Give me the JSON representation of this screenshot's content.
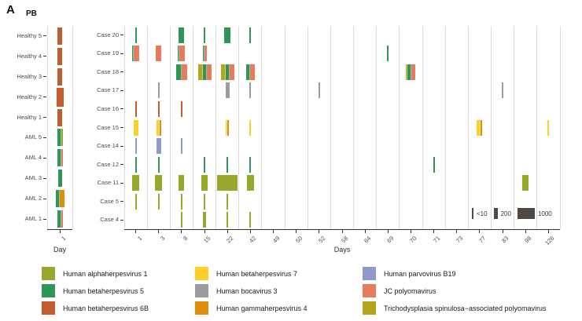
{
  "figure": {
    "panel_label": "A"
  },
  "chart_data": {
    "type": "scatter",
    "description": "Virus detection over time; each mark is a virus detected in a sample, mark width encodes viral load",
    "colors": {
      "alpha1": "#98a82c",
      "beta5": "#2e9659",
      "beta6b": "#c25e2d",
      "beta7": "#fccf2b",
      "boca3": "#9c9c9c",
      "gamma4": "#df8d0d",
      "b19": "#8f9aca",
      "jc": "#e87a5e",
      "tspyv": "#b5a51d"
    },
    "virus_labels": {
      "alpha1": "Human alphaherpesvirus 1",
      "beta5": "Human betaherpesvirus 5",
      "beta6b": "Human betaherpesvirus 6B",
      "beta7": "Human betaherpesvirus 7",
      "boca3": "Human bocavirus 3",
      "gamma4": "Human gammaherpesvirus 4",
      "b19": "Human parvovirus B19",
      "jc": "JC polyomavirus",
      "tspyv": "Trichodysplasia spinulosa−associated polyomavirus"
    },
    "legend_columns": [
      [
        "alpha1",
        "beta5",
        "beta6b"
      ],
      [
        "beta7",
        "boca3",
        "gamma4"
      ],
      [
        "b19",
        "jc",
        "tspyv"
      ]
    ],
    "size_legend": [
      {
        "label": "<10",
        "w": 2
      },
      {
        "label": "200",
        "w": 5
      },
      {
        "label": "1000",
        "w": 22
      }
    ],
    "panels": [
      {
        "id": "pb",
        "title": "PB",
        "xlabel": "Day",
        "x_categories": [
          "1"
        ],
        "rows": [
          {
            "label": "Healthy 5",
            "entries": [
              {
                "day": "1",
                "stack": [
                  [
                    "beta6b",
                    6
                  ]
                ]
              }
            ]
          },
          {
            "label": "Healthy 4",
            "entries": [
              {
                "day": "1",
                "stack": [
                  [
                    "beta6b",
                    6
                  ]
                ]
              }
            ]
          },
          {
            "label": "Healthy 3",
            "entries": [
              {
                "day": "1",
                "stack": [
                  [
                    "beta6b",
                    6
                  ]
                ]
              }
            ]
          },
          {
            "label": "Healthy 2",
            "entries": [
              {
                "day": "1",
                "stack": [
                  [
                    "beta6b",
                    9
                  ]
                ],
                "h": 24
              }
            ]
          },
          {
            "label": "Healthy 1",
            "entries": [
              {
                "day": "1",
                "stack": [
                  [
                    "beta6b",
                    6
                  ]
                ]
              }
            ]
          },
          {
            "label": "AML 5",
            "entries": [
              {
                "day": "1",
                "stack": [
                  [
                    "beta5",
                    5
                  ],
                  [
                    "alpha1",
                    2
                  ]
                ]
              }
            ]
          },
          {
            "label": "AML 4",
            "entries": [
              {
                "day": "1",
                "stack": [
                  [
                    "beta5",
                    5
                  ],
                  [
                    "jc",
                    2
                  ]
                ]
              }
            ]
          },
          {
            "label": "AML 3",
            "entries": [
              {
                "day": "1",
                "stack": [
                  [
                    "beta5",
                    5
                  ]
                ]
              }
            ]
          },
          {
            "label": "AML 2",
            "entries": [
              {
                "day": "1",
                "stack": [
                  [
                    "beta5",
                    5
                  ],
                  [
                    "gamma4",
                    6
                  ]
                ]
              }
            ]
          },
          {
            "label": "AML 1",
            "entries": [
              {
                "day": "1",
                "stack": [
                  [
                    "beta5",
                    5
                  ],
                  [
                    "jc",
                    2
                  ]
                ]
              }
            ]
          }
        ]
      },
      {
        "id": "cases",
        "title": "",
        "xlabel": "Days",
        "x_categories": [
          "1",
          "3",
          "8",
          "15",
          "22",
          "42",
          "49",
          "50",
          "52",
          "58",
          "64",
          "69",
          "70",
          "71",
          "73",
          "77",
          "83",
          "98",
          "126"
        ],
        "rows": [
          {
            "label": "Case 20",
            "entries": [
              {
                "day": "1",
                "stack": [
                  [
                    "beta5",
                    2
                  ]
                ]
              },
              {
                "day": "8",
                "stack": [
                  [
                    "beta5",
                    7
                  ]
                ]
              },
              {
                "day": "15",
                "stack": [
                  [
                    "beta5",
                    2
                  ]
                ]
              },
              {
                "day": "22",
                "stack": [
                  [
                    "beta5",
                    8
                  ]
                ]
              },
              {
                "day": "42",
                "stack": [
                  [
                    "beta5",
                    2
                  ]
                ]
              }
            ]
          },
          {
            "label": "Case 19",
            "entries": [
              {
                "day": "1",
                "stack": [
                  [
                    "beta5",
                    2
                  ],
                  [
                    "jc",
                    7
                  ]
                ]
              },
              {
                "day": "3",
                "stack": [
                  [
                    "jc",
                    7
                  ]
                ]
              },
              {
                "day": "8",
                "stack": [
                  [
                    "beta5",
                    2
                  ],
                  [
                    "jc",
                    7
                  ]
                ]
              },
              {
                "day": "15",
                "stack": [
                  [
                    "beta5",
                    2
                  ],
                  [
                    "jc",
                    3
                  ]
                ]
              },
              {
                "day": "69",
                "stack": [
                  [
                    "beta5",
                    2
                  ]
                ]
              }
            ]
          },
          {
            "label": "Case 18",
            "entries": [
              {
                "day": "8",
                "stack": [
                  [
                    "beta5",
                    7
                  ],
                  [
                    "jc",
                    7
                  ]
                ]
              },
              {
                "day": "15",
                "stack": [
                  [
                    "tspyv",
                    6
                  ],
                  [
                    "beta5",
                    5
                  ],
                  [
                    "jc",
                    6
                  ]
                ]
              },
              {
                "day": "22",
                "stack": [
                  [
                    "tspyv",
                    6
                  ],
                  [
                    "beta5",
                    5
                  ],
                  [
                    "jc",
                    6
                  ]
                ]
              },
              {
                "day": "42",
                "stack": [
                  [
                    "beta5",
                    5
                  ],
                  [
                    "jc",
                    6
                  ]
                ]
              },
              {
                "day": "70",
                "stack": [
                  [
                    "tspyv",
                    2
                  ],
                  [
                    "beta5",
                    5
                  ],
                  [
                    "jc",
                    5
                  ]
                ]
              }
            ]
          },
          {
            "label": "Case 17",
            "entries": [
              {
                "day": "3",
                "stack": [
                  [
                    "boca3",
                    2
                  ]
                ]
              },
              {
                "day": "22",
                "stack": [
                  [
                    "boca3",
                    5
                  ]
                ]
              },
              {
                "day": "42",
                "stack": [
                  [
                    "boca3",
                    2
                  ]
                ]
              },
              {
                "day": "52",
                "stack": [
                  [
                    "boca3",
                    2
                  ]
                ]
              },
              {
                "day": "83",
                "stack": [
                  [
                    "boca3",
                    2
                  ]
                ]
              }
            ]
          },
          {
            "label": "Case 16",
            "entries": [
              {
                "day": "1",
                "stack": [
                  [
                    "beta6b",
                    2
                  ]
                ]
              },
              {
                "day": "3",
                "stack": [
                  [
                    "beta6b",
                    2
                  ]
                ]
              },
              {
                "day": "8",
                "stack": [
                  [
                    "beta6b",
                    2
                  ]
                ]
              }
            ]
          },
          {
            "label": "Case 15",
            "entries": [
              {
                "day": "1",
                "stack": [
                  [
                    "beta7",
                    6
                  ]
                ]
              },
              {
                "day": "3",
                "stack": [
                  [
                    "beta7",
                    4
                  ],
                  [
                    "gamma4",
                    2
                  ]
                ]
              },
              {
                "day": "22",
                "stack": [
                  [
                    "beta7",
                    2
                  ],
                  [
                    "gamma4",
                    2
                  ]
                ]
              },
              {
                "day": "42",
                "stack": [
                  [
                    "beta7",
                    2
                  ]
                ]
              },
              {
                "day": "77",
                "stack": [
                  [
                    "beta7",
                    5
                  ],
                  [
                    "gamma4",
                    2
                  ]
                ]
              },
              {
                "day": "126",
                "stack": [
                  [
                    "beta7",
                    2
                  ]
                ]
              }
            ]
          },
          {
            "label": "Case 14",
            "entries": [
              {
                "day": "1",
                "stack": [
                  [
                    "b19",
                    2
                  ]
                ]
              },
              {
                "day": "3",
                "stack": [
                  [
                    "b19",
                    6
                  ]
                ]
              },
              {
                "day": "8",
                "stack": [
                  [
                    "b19",
                    2
                  ]
                ]
              }
            ]
          },
          {
            "label": "Case 12",
            "entries": [
              {
                "day": "1",
                "stack": [
                  [
                    "beta5",
                    2
                  ]
                ]
              },
              {
                "day": "3",
                "stack": [
                  [
                    "beta5",
                    2
                  ]
                ]
              },
              {
                "day": "15",
                "stack": [
                  [
                    "beta5",
                    2
                  ]
                ]
              },
              {
                "day": "22",
                "stack": [
                  [
                    "beta5",
                    2
                  ]
                ]
              },
              {
                "day": "42",
                "stack": [
                  [
                    "beta5",
                    2
                  ]
                ]
              },
              {
                "day": "71",
                "stack": [
                  [
                    "beta5",
                    2
                  ]
                ]
              }
            ]
          },
          {
            "label": "Case 11",
            "entries": [
              {
                "day": "1",
                "stack": [
                  [
                    "alpha1",
                    9
                  ]
                ]
              },
              {
                "day": "3",
                "stack": [
                  [
                    "alpha1",
                    9
                  ]
                ]
              },
              {
                "day": "8",
                "stack": [
                  [
                    "alpha1",
                    7
                  ]
                ]
              },
              {
                "day": "15",
                "stack": [
                  [
                    "alpha1",
                    8
                  ]
                ]
              },
              {
                "day": "22",
                "stack": [
                  [
                    "alpha1",
                    26
                  ]
                ]
              },
              {
                "day": "42",
                "stack": [
                  [
                    "alpha1",
                    9
                  ]
                ]
              },
              {
                "day": "98",
                "stack": [
                  [
                    "alpha1",
                    8
                  ]
                ]
              }
            ]
          },
          {
            "label": "Case 5",
            "entries": [
              {
                "day": "1",
                "stack": [
                  [
                    "alpha1",
                    2
                  ]
                ]
              },
              {
                "day": "3",
                "stack": [
                  [
                    "alpha1",
                    2
                  ]
                ]
              },
              {
                "day": "8",
                "stack": [
                  [
                    "alpha1",
                    2
                  ]
                ]
              },
              {
                "day": "15",
                "stack": [
                  [
                    "alpha1",
                    2
                  ]
                ]
              },
              {
                "day": "22",
                "stack": [
                  [
                    "alpha1",
                    2
                  ]
                ]
              }
            ]
          },
          {
            "label": "Case 4",
            "entries": [
              {
                "day": "8",
                "stack": [
                  [
                    "alpha1",
                    2
                  ]
                ]
              },
              {
                "day": "15",
                "stack": [
                  [
                    "alpha1",
                    4
                  ]
                ]
              },
              {
                "day": "22",
                "stack": [
                  [
                    "alpha1",
                    2
                  ]
                ]
              },
              {
                "day": "42",
                "stack": [
                  [
                    "alpha1",
                    2
                  ]
                ]
              }
            ]
          }
        ]
      }
    ]
  }
}
